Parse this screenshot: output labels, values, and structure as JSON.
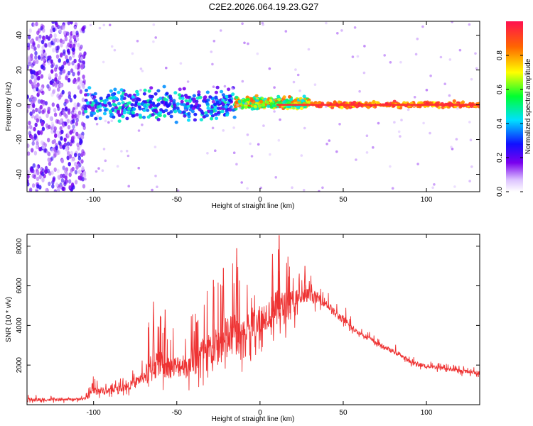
{
  "title": "C2E2.2026.064.19.23.G27",
  "chart_data": [
    {
      "type": "heatmap",
      "xlabel": "Height of straight line (km)",
      "ylabel": "Frequency (Hz)",
      "xlim": [
        -140,
        132
      ],
      "ylim": [
        -50,
        48
      ],
      "xticks": [
        -100,
        -50,
        0,
        50,
        100
      ],
      "xtick_labels": [
        "-100",
        "-50",
        "0",
        "50",
        "100"
      ],
      "yticks": [
        -40,
        -20,
        0,
        20,
        40
      ],
      "ytick_labels": [
        "-40",
        "-20",
        "0",
        "20",
        "40"
      ],
      "colorbar": {
        "label": "Normalized spectral amplitude",
        "range": [
          0,
          1
        ],
        "ticks": [
          0.0,
          0.2,
          0.4,
          0.6,
          0.8
        ],
        "tick_labels": [
          "0.0",
          "0.2",
          "0.4",
          "0.6",
          "0.8"
        ]
      },
      "regions": [
        {
          "x": [
            -140,
            -105
          ],
          "freq_spread": 48,
          "amplitude": [
            0.05,
            0.25
          ],
          "description": "broadband noise"
        },
        {
          "x": [
            -105,
            -15
          ],
          "freq_center": 0,
          "freq_spread": 8,
          "amplitude": [
            0.15,
            0.5
          ]
        },
        {
          "x": [
            -15,
            30
          ],
          "freq_center": 1,
          "freq_spread": 3,
          "amplitude": [
            0.4,
            0.9
          ]
        },
        {
          "x": [
            30,
            132
          ],
          "freq_center": 0,
          "freq_spread": 1.5,
          "amplitude": [
            0.7,
            1.0
          ]
        }
      ]
    },
    {
      "type": "line",
      "xlabel": "Height of straight line (km)",
      "ylabel": "SNR (10 * v/v)",
      "xlim": [
        -140,
        132
      ],
      "ylim": [
        0,
        8600
      ],
      "xticks": [
        -100,
        -50,
        0,
        50,
        100
      ],
      "xtick_labels": [
        "-100",
        "-50",
        "0",
        "50",
        "100"
      ],
      "yticks": [
        2000,
        4000,
        6000,
        8000
      ],
      "ytick_labels": [
        "2000",
        "4000",
        "6000",
        "8000"
      ],
      "series": [
        {
          "name": "SNR",
          "color": "#ee3333",
          "x": [
            -140,
            -120,
            -105,
            -100,
            -90,
            -80,
            -70,
            -65,
            -60,
            -55,
            -50,
            -45,
            -40,
            -35,
            -30,
            -25,
            -20,
            -15,
            -10,
            -5,
            0,
            5,
            10,
            15,
            20,
            25,
            30,
            35,
            40,
            45,
            50,
            55,
            60,
            65,
            70,
            75,
            80,
            85,
            90,
            100,
            110,
            120,
            132
          ],
          "y": [
            250,
            250,
            300,
            700,
            700,
            900,
            1400,
            1900,
            2100,
            1900,
            1900,
            2100,
            2300,
            2600,
            2800,
            2900,
            3300,
            3500,
            3800,
            4100,
            4400,
            4600,
            4800,
            4900,
            5200,
            5400,
            5500,
            5400,
            5100,
            4600,
            4300,
            3900,
            3600,
            3400,
            3100,
            2900,
            2700,
            2500,
            2150,
            1950,
            1850,
            1700,
            1600
          ],
          "lo": [
            80,
            80,
            100,
            250,
            350,
            400,
            500,
            600,
            700,
            650,
            650,
            700,
            700,
            700,
            800,
            900,
            900,
            1000,
            1200,
            1800,
            2300,
            2600,
            3000,
            3300,
            3700,
            4000,
            4300,
            4600,
            4400,
            4100,
            3900,
            3600,
            3400,
            3200,
            2900,
            2700,
            2500,
            2300,
            1900,
            1700,
            1600,
            1450,
            1350
          ],
          "hi": [
            700,
            350,
            500,
            1500,
            1200,
            1500,
            2300,
            5300,
            4600,
            3900,
            4000,
            4200,
            4800,
            5300,
            6100,
            6400,
            7900,
            7500,
            6200,
            6300,
            6500,
            7000,
            8600,
            7900,
            7500,
            6500,
            6600,
            6000,
            5800,
            5300,
            5100,
            4500,
            4000,
            3800,
            3500,
            3300,
            3100,
            2900,
            2500,
            2300,
            2100,
            2000,
            1900
          ],
          "peaks": [
            {
              "x": 11.5,
              "y": 8550
            },
            {
              "x": 7.5,
              "y": 7600
            },
            {
              "x": 27,
              "y": 7000
            },
            {
              "x": -14,
              "y": 7900
            },
            {
              "x": -22,
              "y": 6900
            },
            {
              "x": -28,
              "y": 6300
            },
            {
              "x": -64,
              "y": 5200
            },
            {
              "x": -57,
              "y": 4800
            }
          ]
        }
      ]
    }
  ]
}
